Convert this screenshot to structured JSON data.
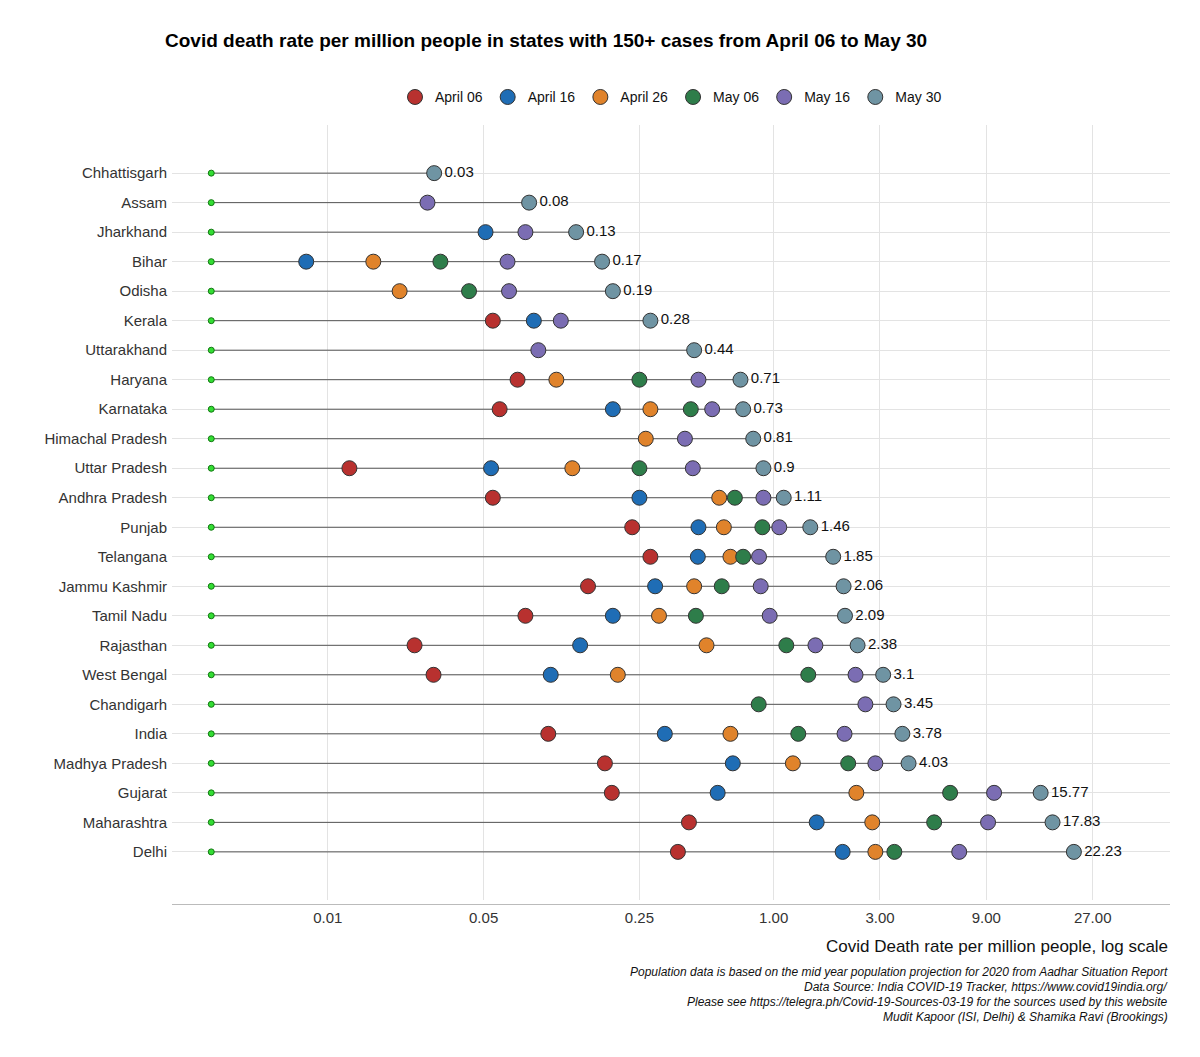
{
  "chart_data": {
    "type": "dot",
    "title": "Covid death rate per million people in states with 150+ cases from April 06 to May 30",
    "x_label": "Covid Death rate per million people, log scale",
    "caption": [
      "Population data is based on the mid year population projection for 2020 from Aadhar Situation Report",
      "Data Source: India COVID-19 Tracker, https://www.covid19india.org/",
      "Please see https://telegra.ph/Covid-19-Sources-03-19 for the sources used by this website",
      "Mudit Kapoor (ISI, Delhi) & Shamika Ravi (Brookings)"
    ],
    "categories": [
      "Chhattisgarh",
      "Assam",
      "Jharkhand",
      "Bihar",
      "Odisha",
      "Kerala",
      "Uttarakhand",
      "Haryana",
      "Karnataka",
      "Himachal Pradesh",
      "Uttar Pradesh",
      "Andhra Pradesh",
      "Punjab",
      "Telangana",
      "Jammu Kashmir",
      "Tamil Nadu",
      "Rajasthan",
      "West Bengal",
      "Chandigarh",
      "India",
      "Madhya Pradesh",
      "Gujarat",
      "Maharashtra",
      "Delhi"
    ],
    "baseline": 0.003,
    "series": [
      {
        "name": "April 06",
        "color": "#b8312f",
        "values": [
          null,
          null,
          null,
          null,
          null,
          0.055,
          null,
          0.071,
          0.059,
          null,
          0.0125,
          0.055,
          0.232,
          0.28,
          0.147,
          0.077,
          0.0245,
          0.0298,
          null,
          0.0975,
          0.175,
          0.188,
          0.417,
          0.372
        ]
      },
      {
        "name": "April 16",
        "color": "#1f6db5",
        "values": [
          null,
          null,
          0.051,
          0.008,
          null,
          0.084,
          null,
          null,
          0.19,
          null,
          0.054,
          0.25,
          0.46,
          0.457,
          0.294,
          0.19,
          0.1355,
          0.1,
          null,
          0.325,
          0.656,
          0.561,
          1.56,
          2.04
        ]
      },
      {
        "name": "April 26",
        "color": "#e0832b",
        "values": [
          null,
          null,
          null,
          0.016,
          0.021,
          null,
          null,
          0.106,
          0.28,
          0.267,
          0.125,
          0.57,
          0.598,
          0.64,
          0.44,
          0.306,
          0.5,
          0.2,
          null,
          0.64,
          1.22,
          2.35,
          2.77,
          2.86
        ]
      },
      {
        "name": "May 06",
        "color": "#2e7d4a",
        "values": [
          null,
          null,
          null,
          0.032,
          0.043,
          null,
          null,
          0.25,
          0.425,
          null,
          0.25,
          0.67,
          0.89,
          0.73,
          0.585,
          0.448,
          1.14,
          1.43,
          0.857,
          1.29,
          2.16,
          6.19,
          5.25,
          3.48
        ]
      },
      {
        "name": "May 16",
        "color": "#7b6db3",
        "values": [
          null,
          0.028,
          0.077,
          0.064,
          0.065,
          0.111,
          0.088,
          0.46,
          0.53,
          0.4,
          0.434,
          0.9,
          1.06,
          0.86,
          0.875,
          0.96,
          1.54,
          2.33,
          2.58,
          2.08,
          2.86,
          9.75,
          9.16,
          6.8
        ]
      },
      {
        "name": "May 30",
        "color": "#6f94a3",
        "values": [
          0.03,
          0.08,
          0.13,
          0.17,
          0.19,
          0.28,
          0.44,
          0.71,
          0.73,
          0.81,
          0.9,
          1.11,
          1.46,
          1.85,
          2.06,
          2.09,
          2.38,
          3.1,
          3.45,
          3.78,
          4.03,
          15.77,
          17.83,
          22.23
        ]
      }
    ],
    "xlim": [
      0.002,
      60
    ],
    "xticks": [
      0.01,
      0.05,
      0.25,
      {
        "value": 1,
        "label": "1.00"
      },
      {
        "value": 3,
        "label": "3.00"
      },
      {
        "value": 9,
        "label": "9.00"
      },
      {
        "value": 27,
        "label": "27.00"
      }
    ],
    "log": "x",
    "grid": true,
    "legend": "top",
    "orientation": "horizontal",
    "data_labels": true
  }
}
